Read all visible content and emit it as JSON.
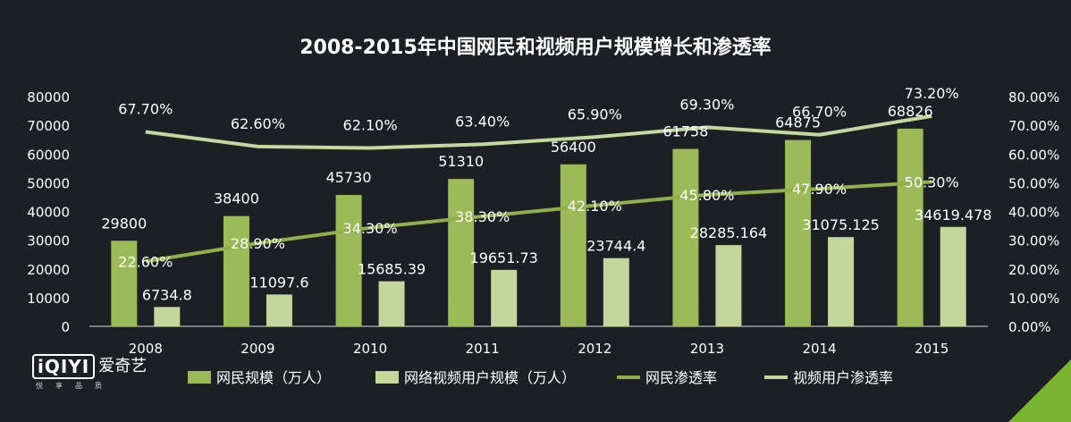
{
  "chart_data": {
    "type": "bar",
    "title": "2008-2015年中国网民和视频用户规模增长和渗透率",
    "categories": [
      "2008",
      "2009",
      "2010",
      "2011",
      "2012",
      "2013",
      "2014",
      "2015"
    ],
    "series": [
      {
        "name": "网民规模（万人）",
        "kind": "bar",
        "axis": "left",
        "color": "#9bbb59",
        "values": [
          29800,
          38400,
          45730,
          51310,
          56400,
          61758,
          64875,
          68826
        ],
        "labels": [
          "29800",
          "38400",
          "45730",
          "51310",
          "56400",
          "61758",
          "64875",
          "68826"
        ]
      },
      {
        "name": "网络视频用户规模（万人）",
        "kind": "bar",
        "axis": "left",
        "color": "#c3d69b",
        "values": [
          6734.8,
          11097.6,
          15685.39,
          19651.73,
          23744.4,
          28285.164,
          31075.125,
          34619.478
        ],
        "labels": [
          "6734.8",
          "11097.6",
          "15685.39",
          "19651.73",
          "23744.4",
          "28285.164",
          "31075.125",
          "34619.478"
        ]
      },
      {
        "name": "网民渗透率",
        "kind": "line",
        "axis": "right",
        "color": "#8fb04a",
        "values": [
          22.6,
          28.9,
          34.3,
          38.3,
          42.1,
          45.8,
          47.9,
          50.3
        ],
        "labels": [
          "22.60%",
          "28.90%",
          "34.30%",
          "38.30%",
          "42.10%",
          "45.80%",
          "47.90%",
          "50.30%"
        ]
      },
      {
        "name": "视频用户渗透率",
        "kind": "line",
        "axis": "right",
        "color": "#c4d79e",
        "values": [
          67.7,
          62.6,
          62.1,
          63.4,
          65.9,
          69.3,
          66.7,
          73.2
        ],
        "labels": [
          "67.70%",
          "62.60%",
          "62.10%",
          "63.40%",
          "65.90%",
          "69.30%",
          "66.70%",
          "73.20%"
        ]
      }
    ],
    "y_left": {
      "min": 0,
      "max": 80000,
      "ticks": [
        "0",
        "10000",
        "20000",
        "30000",
        "40000",
        "50000",
        "60000",
        "70000",
        "80000"
      ]
    },
    "y_right": {
      "min": 0,
      "max": 80,
      "ticks": [
        "0.00%",
        "10.00%",
        "20.00%",
        "30.00%",
        "40.00%",
        "50.00%",
        "60.00%",
        "70.00%",
        "80.00%"
      ]
    },
    "grid": false,
    "legend": "bottom"
  },
  "brand": {
    "logo": "iQIYI",
    "name": "爱奇艺",
    "slogan": "悦享品质",
    "accent": "#7ab32e"
  }
}
